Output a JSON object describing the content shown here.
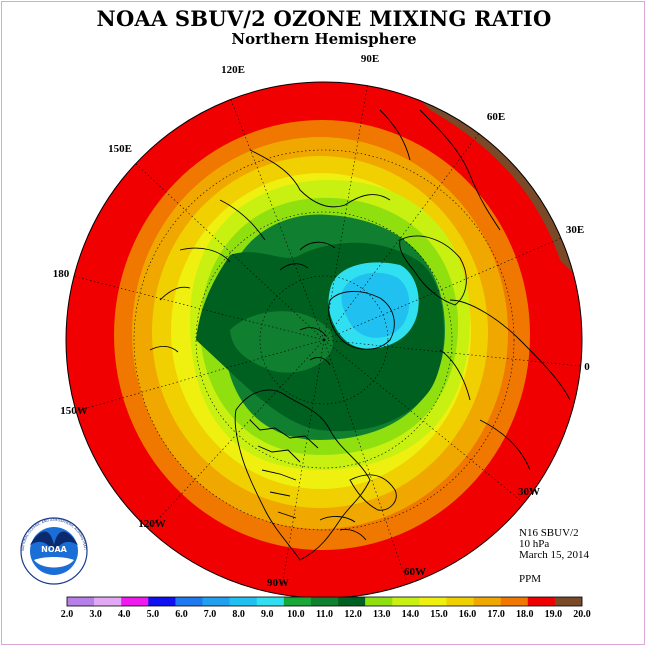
{
  "title": "NOAA SBUV/2 OZONE MIXING RATIO",
  "subtitle": "Northern Hemisphere",
  "longitude_labels": [
    "90E",
    "120E",
    "60E",
    "150E",
    "30E",
    "180",
    "0",
    "150W",
    "30W",
    "120W",
    "60W",
    "90W"
  ],
  "info": {
    "instrument": "N16 SBUV/2",
    "level": "10 hPa",
    "date": "March 15, 2014",
    "units": "PPM"
  },
  "colorbar": {
    "ticks": [
      "2.0",
      "3.0",
      "4.0",
      "5.0",
      "6.0",
      "7.0",
      "8.0",
      "9.0",
      "10.0",
      "11.0",
      "12.0",
      "13.0",
      "14.0",
      "15.0",
      "16.0",
      "17.0",
      "18.0",
      "19.0",
      "20.0"
    ],
    "colors": [
      "#b77fe8",
      "#e2a8f6",
      "#f019f0",
      "#1010f0",
      "#1e78f0",
      "#20a0f0",
      "#20c0f0",
      "#30e0f0",
      "#18a838",
      "#108030",
      "#006020",
      "#90e010",
      "#c8f010",
      "#f0f010",
      "#f0d000",
      "#f0a800",
      "#f07800",
      "#f00000",
      "#7a4a28"
    ]
  },
  "logo": {
    "text": "NOAA",
    "ring_text": "NATIONAL OCEANIC AND ATMOSPHERIC ADMINISTRATION · U.S. DEPARTMENT OF COMMERCE"
  }
}
